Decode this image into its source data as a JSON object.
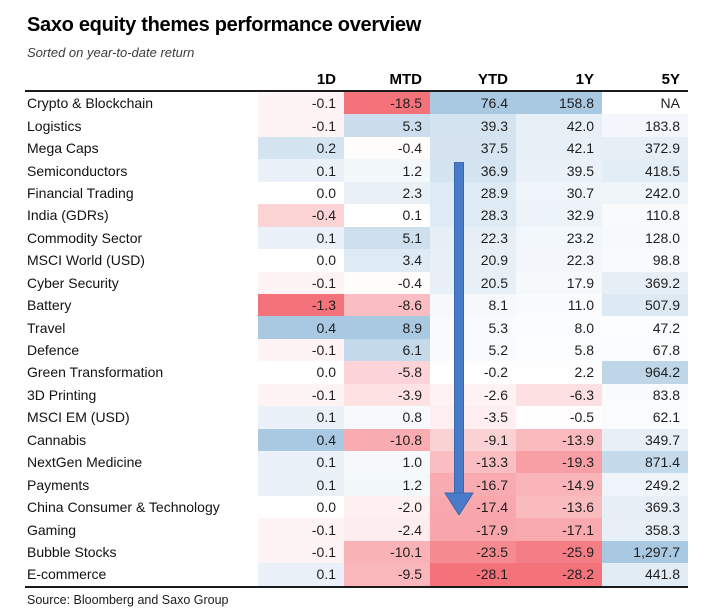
{
  "chart_data": {
    "type": "heatmap",
    "title": "Saxo equity themes performance overview",
    "subtitle": "Sorted on year-to-date return",
    "source": "Source: Bloomberg and Saxo Group",
    "columns": [
      "1D",
      "MTD",
      "YTD",
      "1Y",
      "5Y"
    ],
    "rows": [
      {
        "label": "Crypto & Blockchain",
        "values": [
          "-0.1",
          "-18.5",
          "76.4",
          "158.8",
          "NA"
        ]
      },
      {
        "label": "Logistics",
        "values": [
          "-0.1",
          "5.3",
          "39.3",
          "42.0",
          "183.8"
        ]
      },
      {
        "label": "Mega Caps",
        "values": [
          "0.2",
          "-0.4",
          "37.5",
          "42.1",
          "372.9"
        ]
      },
      {
        "label": "Semiconductors",
        "values": [
          "0.1",
          "1.2",
          "36.9",
          "39.5",
          "418.5"
        ]
      },
      {
        "label": "Financial Trading",
        "values": [
          "0.0",
          "2.3",
          "28.9",
          "30.7",
          "242.0"
        ]
      },
      {
        "label": "India (GDRs)",
        "values": [
          "-0.4",
          "0.1",
          "28.3",
          "32.9",
          "110.8"
        ]
      },
      {
        "label": "Commodity Sector",
        "values": [
          "0.1",
          "5.1",
          "22.3",
          "23.2",
          "128.0"
        ]
      },
      {
        "label": "MSCI World (USD)",
        "values": [
          "0.0",
          "3.4",
          "20.9",
          "22.3",
          "98.8"
        ]
      },
      {
        "label": "Cyber Security",
        "values": [
          "-0.1",
          "-0.4",
          "20.5",
          "17.9",
          "369.2"
        ]
      },
      {
        "label": "Battery",
        "values": [
          "-1.3",
          "-8.6",
          "8.1",
          "11.0",
          "507.9"
        ]
      },
      {
        "label": "Travel",
        "values": [
          "0.4",
          "8.9",
          "5.3",
          "8.0",
          "47.2"
        ]
      },
      {
        "label": "Defence",
        "values": [
          "-0.1",
          "6.1",
          "5.2",
          "5.8",
          "67.8"
        ]
      },
      {
        "label": "Green Transformation",
        "values": [
          "0.0",
          "-5.8",
          "-0.2",
          "2.2",
          "964.2"
        ]
      },
      {
        "label": "3D Printing",
        "values": [
          "-0.1",
          "-3.9",
          "-2.6",
          "-6.3",
          "83.8"
        ]
      },
      {
        "label": "MSCI EM (USD)",
        "values": [
          "0.1",
          "0.8",
          "-3.5",
          "-0.5",
          "62.1"
        ]
      },
      {
        "label": "Cannabis",
        "values": [
          "0.4",
          "-10.8",
          "-9.1",
          "-13.9",
          "349.7"
        ]
      },
      {
        "label": "NextGen Medicine",
        "values": [
          "0.1",
          "1.0",
          "-13.3",
          "-19.3",
          "871.4"
        ]
      },
      {
        "label": "Payments",
        "values": [
          "0.1",
          "1.2",
          "-16.7",
          "-14.9",
          "249.2"
        ]
      },
      {
        "label": "China Consumer & Technology",
        "values": [
          "0.0",
          "-2.0",
          "-17.4",
          "-13.6",
          "369.3"
        ]
      },
      {
        "label": "Gaming",
        "values": [
          "-0.1",
          "-2.4",
          "-17.9",
          "-17.1",
          "358.3"
        ]
      },
      {
        "label": "Bubble Stocks",
        "values": [
          "-0.1",
          "-10.1",
          "-23.5",
          "-25.9",
          "1,297.7"
        ]
      },
      {
        "label": "E-commerce",
        "values": [
          "0.1",
          "-9.5",
          "-28.1",
          "-28.2",
          "441.8"
        ]
      }
    ],
    "heatmap_scale": {
      "midpoint": 0,
      "column_caps": [
        {
          "column": "1D",
          "blue_at": 0.4,
          "red_at": -1.3
        },
        {
          "column": "MTD",
          "blue_at": 8.9,
          "red_at": -18.5
        },
        {
          "column": "YTD",
          "blue_at": 76.4,
          "red_at": -28.1
        },
        {
          "column": "1Y",
          "blue_at": 158.8,
          "red_at": -28.2
        },
        {
          "column": "5Y",
          "blue_at": 1297.7,
          "red_at": -1.0
        }
      ]
    },
    "colors": {
      "positive_full": "#A9C8E1",
      "negative_full": "#F4737B",
      "neutral": "#FFFFFF",
      "arrow_fill": "#4A7BC8",
      "arrow_stroke": "#3A66AE"
    },
    "annotation_arrow": {
      "column": "YTD",
      "direction": "down"
    }
  }
}
